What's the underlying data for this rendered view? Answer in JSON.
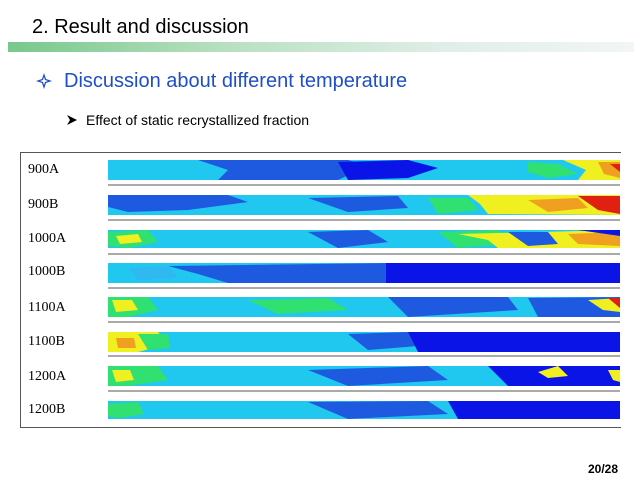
{
  "header": {
    "title": "2. Result and discussion"
  },
  "section": {
    "icon": "diamond-bullet-icon",
    "heading": "Discussion about different temperature"
  },
  "subsection": {
    "icon": "arrow-bullet-icon",
    "text": "Effect of static recrystallized fraction"
  },
  "figure": {
    "rows": [
      {
        "label": "900A"
      },
      {
        "label": "900B"
      },
      {
        "label": "1000A"
      },
      {
        "label": "1000B"
      },
      {
        "label": "1100A"
      },
      {
        "label": "1100B"
      },
      {
        "label": "1200A"
      },
      {
        "label": "1200B"
      }
    ]
  },
  "colors": {
    "accent": "#1f4fc8",
    "map_dark_blue": "#0a14e6",
    "map_blue": "#1e5ae0",
    "map_cyan": "#20c8f0",
    "map_green": "#30e070",
    "map_yellow": "#f0f020",
    "map_orange": "#f0a020",
    "map_red": "#e02010"
  },
  "footer": {
    "page_number": "20/28"
  }
}
